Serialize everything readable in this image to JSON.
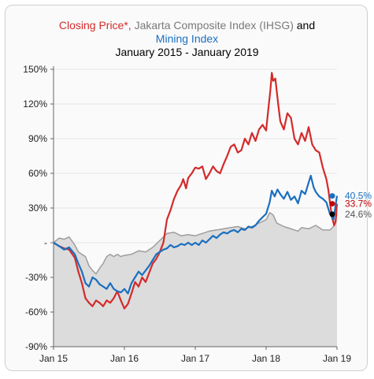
{
  "chart_data": {
    "type": "line",
    "title": {
      "part1": "Closing Price*,",
      "part2": "Jakarta Composite Index (IHSG)",
      "part3": "and",
      "part4": "Mining Index",
      "line3": "January 2015 - January 2019"
    },
    "xlabel": "",
    "ylabel": "",
    "x_ticks": [
      "Jan 15",
      "Jan 16",
      "Jan 17",
      "Jan 18",
      "Jan 19"
    ],
    "y_ticks": [
      {
        "value": 150,
        "label": "150%",
        "color": "#222222"
      },
      {
        "value": 120,
        "label": "120%",
        "color": "#222222"
      },
      {
        "value": 90,
        "label": "90%",
        "color": "#222222"
      },
      {
        "value": 60,
        "label": "60%",
        "color": "#222222"
      },
      {
        "value": 30,
        "label": "30%",
        "color": "#222222"
      },
      {
        "value": 0,
        "label": "-",
        "color": "#222222"
      },
      {
        "value": -30,
        "label": "-30%",
        "color": "#c00000"
      },
      {
        "value": -60,
        "label": "-60%",
        "color": "#c00000"
      },
      {
        "value": -90,
        "label": "-90%",
        "color": "#c00000"
      }
    ],
    "ylim": [
      -90,
      150
    ],
    "xlim": [
      2015,
      2019
    ],
    "series": [
      {
        "name": "Closing Price*",
        "color": "#d42a2a",
        "end_label": "33.7%",
        "end_value": 33.7,
        "points": [
          [
            2015.0,
            0
          ],
          [
            2015.08,
            -3
          ],
          [
            2015.15,
            -5
          ],
          [
            2015.22,
            -6
          ],
          [
            2015.3,
            -13
          ],
          [
            2015.35,
            -25
          ],
          [
            2015.4,
            -35
          ],
          [
            2015.45,
            -48
          ],
          [
            2015.5,
            -52
          ],
          [
            2015.55,
            -55
          ],
          [
            2015.6,
            -50
          ],
          [
            2015.65,
            -52
          ],
          [
            2015.7,
            -55
          ],
          [
            2015.75,
            -50
          ],
          [
            2015.8,
            -52
          ],
          [
            2015.85,
            -48
          ],
          [
            2015.9,
            -42
          ],
          [
            2015.95,
            -50
          ],
          [
            2016.0,
            -57
          ],
          [
            2016.05,
            -53
          ],
          [
            2016.1,
            -44
          ],
          [
            2016.15,
            -34
          ],
          [
            2016.2,
            -38
          ],
          [
            2016.25,
            -30
          ],
          [
            2016.3,
            -34
          ],
          [
            2016.35,
            -26
          ],
          [
            2016.4,
            -18
          ],
          [
            2016.45,
            -14
          ],
          [
            2016.5,
            -8
          ],
          [
            2016.55,
            0
          ],
          [
            2016.6,
            20
          ],
          [
            2016.65,
            28
          ],
          [
            2016.7,
            38
          ],
          [
            2016.75,
            45
          ],
          [
            2016.8,
            50
          ],
          [
            2016.83,
            55
          ],
          [
            2016.87,
            47
          ],
          [
            2016.9,
            56
          ],
          [
            2016.95,
            60
          ],
          [
            2017.0,
            65
          ],
          [
            2017.05,
            64
          ],
          [
            2017.1,
            66
          ],
          [
            2017.15,
            55
          ],
          [
            2017.2,
            60
          ],
          [
            2017.25,
            66
          ],
          [
            2017.3,
            62
          ],
          [
            2017.35,
            60
          ],
          [
            2017.4,
            68
          ],
          [
            2017.45,
            75
          ],
          [
            2017.5,
            83
          ],
          [
            2017.55,
            85
          ],
          [
            2017.6,
            78
          ],
          [
            2017.65,
            80
          ],
          [
            2017.7,
            90
          ],
          [
            2017.75,
            85
          ],
          [
            2017.8,
            95
          ],
          [
            2017.85,
            88
          ],
          [
            2017.9,
            98
          ],
          [
            2017.95,
            102
          ],
          [
            2018.0,
            97
          ],
          [
            2018.03,
            115
          ],
          [
            2018.06,
            132
          ],
          [
            2018.08,
            147
          ],
          [
            2018.1,
            140
          ],
          [
            2018.13,
            142
          ],
          [
            2018.17,
            120
          ],
          [
            2018.2,
            105
          ],
          [
            2018.25,
            98
          ],
          [
            2018.3,
            112
          ],
          [
            2018.35,
            108
          ],
          [
            2018.4,
            90
          ],
          [
            2018.45,
            85
          ],
          [
            2018.5,
            95
          ],
          [
            2018.55,
            88
          ],
          [
            2018.6,
            100
          ],
          [
            2018.65,
            85
          ],
          [
            2018.7,
            80
          ],
          [
            2018.75,
            78
          ],
          [
            2018.8,
            65
          ],
          [
            2018.85,
            55
          ],
          [
            2018.88,
            45
          ],
          [
            2018.9,
            35
          ],
          [
            2018.93,
            22
          ],
          [
            2018.96,
            15
          ],
          [
            2018.98,
            18
          ],
          [
            2019.0,
            33.7
          ]
        ]
      },
      {
        "name": "Jakarta Composite Index (IHSG)",
        "color": "#9e9e9e",
        "fill": "#dcdcdc",
        "end_label": "24.6%",
        "end_value": 24.6,
        "points": [
          [
            2015.0,
            0
          ],
          [
            2015.08,
            4
          ],
          [
            2015.15,
            3
          ],
          [
            2015.22,
            5
          ],
          [
            2015.3,
            -2
          ],
          [
            2015.35,
            -8
          ],
          [
            2015.4,
            -10
          ],
          [
            2015.45,
            -12
          ],
          [
            2015.5,
            -20
          ],
          [
            2015.55,
            -24
          ],
          [
            2015.6,
            -27
          ],
          [
            2015.65,
            -22
          ],
          [
            2015.7,
            -18
          ],
          [
            2015.75,
            -12
          ],
          [
            2015.8,
            -10
          ],
          [
            2015.85,
            -12
          ],
          [
            2015.9,
            -10
          ],
          [
            2015.95,
            -12
          ],
          [
            2016.0,
            -11
          ],
          [
            2016.1,
            -10
          ],
          [
            2016.2,
            -7
          ],
          [
            2016.3,
            -8
          ],
          [
            2016.4,
            -4
          ],
          [
            2016.5,
            2
          ],
          [
            2016.6,
            8
          ],
          [
            2016.7,
            9
          ],
          [
            2016.8,
            6
          ],
          [
            2016.9,
            7
          ],
          [
            2017.0,
            6
          ],
          [
            2017.1,
            8
          ],
          [
            2017.2,
            10
          ],
          [
            2017.3,
            11
          ],
          [
            2017.4,
            12
          ],
          [
            2017.5,
            13
          ],
          [
            2017.6,
            14
          ],
          [
            2017.7,
            12
          ],
          [
            2017.8,
            14
          ],
          [
            2017.9,
            17
          ],
          [
            2018.0,
            20
          ],
          [
            2018.05,
            26
          ],
          [
            2018.1,
            24
          ],
          [
            2018.15,
            17
          ],
          [
            2018.25,
            14
          ],
          [
            2018.35,
            12
          ],
          [
            2018.45,
            10
          ],
          [
            2018.5,
            13
          ],
          [
            2018.6,
            12
          ],
          [
            2018.7,
            15
          ],
          [
            2018.8,
            11
          ],
          [
            2018.9,
            11
          ],
          [
            2018.95,
            14
          ],
          [
            2019.0,
            24.6
          ]
        ]
      },
      {
        "name": "Mining Index",
        "color": "#1a6fbf",
        "end_label": "40.5%",
        "end_value": 40.5,
        "points": [
          [
            2015.0,
            0
          ],
          [
            2015.08,
            -3
          ],
          [
            2015.15,
            -6
          ],
          [
            2015.22,
            -4
          ],
          [
            2015.3,
            -10
          ],
          [
            2015.35,
            -18
          ],
          [
            2015.4,
            -25
          ],
          [
            2015.45,
            -35
          ],
          [
            2015.5,
            -38
          ],
          [
            2015.55,
            -30
          ],
          [
            2015.6,
            -32
          ],
          [
            2015.65,
            -36
          ],
          [
            2015.7,
            -38
          ],
          [
            2015.75,
            -40
          ],
          [
            2015.8,
            -35
          ],
          [
            2015.85,
            -40
          ],
          [
            2015.9,
            -42
          ],
          [
            2015.95,
            -43
          ],
          [
            2016.0,
            -40
          ],
          [
            2016.05,
            -44
          ],
          [
            2016.1,
            -35
          ],
          [
            2016.15,
            -30
          ],
          [
            2016.2,
            -25
          ],
          [
            2016.25,
            -28
          ],
          [
            2016.3,
            -24
          ],
          [
            2016.35,
            -20
          ],
          [
            2016.4,
            -15
          ],
          [
            2016.45,
            -10
          ],
          [
            2016.5,
            -8
          ],
          [
            2016.55,
            -6
          ],
          [
            2016.6,
            -5
          ],
          [
            2016.65,
            -2
          ],
          [
            2016.7,
            -4
          ],
          [
            2016.75,
            -3
          ],
          [
            2016.8,
            -1
          ],
          [
            2016.85,
            -2
          ],
          [
            2016.9,
            0
          ],
          [
            2016.95,
            -2
          ],
          [
            2017.0,
            0
          ],
          [
            2017.05,
            -2
          ],
          [
            2017.1,
            2
          ],
          [
            2017.15,
            0
          ],
          [
            2017.2,
            3
          ],
          [
            2017.25,
            6
          ],
          [
            2017.3,
            4
          ],
          [
            2017.35,
            7
          ],
          [
            2017.4,
            9
          ],
          [
            2017.45,
            8
          ],
          [
            2017.5,
            10
          ],
          [
            2017.55,
            11
          ],
          [
            2017.6,
            9
          ],
          [
            2017.65,
            12
          ],
          [
            2017.7,
            11
          ],
          [
            2017.75,
            14
          ],
          [
            2017.8,
            13
          ],
          [
            2017.85,
            15
          ],
          [
            2017.9,
            19
          ],
          [
            2017.95,
            22
          ],
          [
            2018.0,
            25
          ],
          [
            2018.05,
            35
          ],
          [
            2018.08,
            45
          ],
          [
            2018.12,
            40
          ],
          [
            2018.16,
            46
          ],
          [
            2018.2,
            42
          ],
          [
            2018.25,
            38
          ],
          [
            2018.3,
            44
          ],
          [
            2018.35,
            37
          ],
          [
            2018.4,
            40
          ],
          [
            2018.45,
            34
          ],
          [
            2018.5,
            45
          ],
          [
            2018.55,
            42
          ],
          [
            2018.6,
            52
          ],
          [
            2018.63,
            58
          ],
          [
            2018.67,
            48
          ],
          [
            2018.7,
            44
          ],
          [
            2018.75,
            40
          ],
          [
            2018.8,
            38
          ],
          [
            2018.85,
            35
          ],
          [
            2018.9,
            25
          ],
          [
            2018.95,
            20
          ],
          [
            2019.0,
            40.5
          ]
        ]
      }
    ]
  }
}
